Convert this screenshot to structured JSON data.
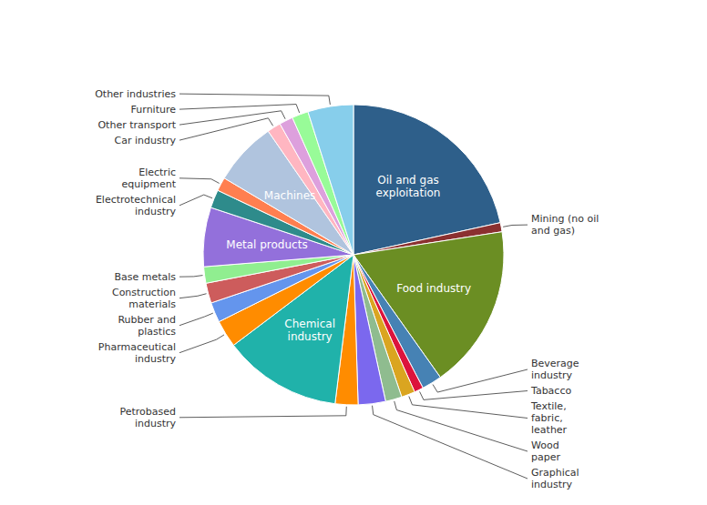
{
  "chart_data": {
    "type": "pie",
    "categories": [
      "Oil and gas\nexploitation",
      "Mining (no oil\nand gas)",
      "Food industry",
      "Beverage\nindustry",
      "Tabacco",
      "Textile,\nfabric,\nleather",
      "Wood\npaper",
      "Graphical\nindustry",
      "Petrobased\nindustry",
      "Chemical\nindustry",
      "Pharmaceutical\nindustry",
      "Rubber and\nplastics",
      "Construction\nmaterials",
      "Base metals",
      "Metal products",
      "Electrotechnical\nindustry",
      "Electric\nequipment",
      "Machines",
      "Car industry",
      "Other transport",
      "Furniture",
      "Other industries"
    ],
    "values": [
      22,
      1.0,
      18,
      2.2,
      1.0,
      1.5,
      1.8,
      3.0,
      2.5,
      13,
      3.0,
      2.2,
      2.2,
      1.8,
      6.5,
      2.0,
      1.5,
      7.0,
      1.5,
      1.5,
      1.8,
      5.0
    ],
    "colors": [
      "#2E5F8A",
      "#8B3030",
      "#6B8E23",
      "#4682B4",
      "#DC143C",
      "#DAA520",
      "#8FBC8F",
      "#7B68EE",
      "#FF8C00",
      "#20B2AA",
      "#FF8C00",
      "#6495ED",
      "#CD5C5C",
      "#90EE90",
      "#9370DB",
      "#2E8B8B",
      "#FF7F50",
      "#B0C4DE",
      "#FFB6C1",
      "#DDA0DD",
      "#98FB98",
      "#87CEEB"
    ]
  }
}
